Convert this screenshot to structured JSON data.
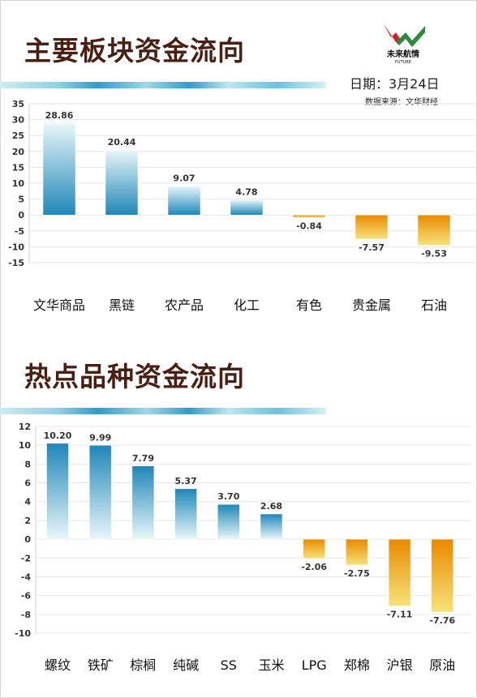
{
  "header": {
    "title": "主要板块资金流向",
    "date_label": "日期：3月24日",
    "source_label": "数据来源：文华财经",
    "logo_text": "未来航情",
    "logo_subtext": "FUTURE"
  },
  "section2": {
    "title": "热点品种资金流向"
  },
  "colors": {
    "positive_top": "#e8f7fa",
    "positive_bottom": "#1f86b8",
    "negative_top": "#e88a00",
    "negative_bottom": "#f7e27a",
    "title": "#4a1f12"
  },
  "chart_data": [
    {
      "type": "bar",
      "title": "主要板块资金流向",
      "categories": [
        "文华商品",
        "黑链",
        "农产品",
        "化工",
        "有色",
        "贵金属",
        "石油"
      ],
      "values": [
        28.86,
        20.44,
        9.07,
        4.78,
        -0.84,
        -7.57,
        -9.53
      ],
      "value_labels": [
        "28.86",
        "20.44",
        "9.07",
        "4.78",
        "-0.84",
        "-7.57",
        "-9.53"
      ],
      "ylim": [
        -15,
        35
      ],
      "yticks": [
        35,
        30,
        25,
        20,
        15,
        10,
        5,
        0,
        -5,
        -10,
        -15
      ],
      "grid": true
    },
    {
      "type": "bar",
      "title": "热点品种资金流向",
      "categories": [
        "螺纹",
        "铁矿",
        "棕榈",
        "纯碱",
        "SS",
        "玉米",
        "LPG",
        "郑棉",
        "沪银",
        "原油"
      ],
      "values": [
        10.2,
        9.99,
        7.79,
        5.37,
        3.7,
        2.68,
        -2.06,
        -2.75,
        -7.11,
        -7.76
      ],
      "value_labels": [
        "10.20",
        "9.99",
        "7.79",
        "5.37",
        "3.70",
        "2.68",
        "-2.06",
        "-2.75",
        "-7.11",
        "-7.76"
      ],
      "ylim": [
        -10,
        12
      ],
      "yticks": [
        12,
        10,
        8,
        6,
        4,
        2,
        0,
        -2,
        -4,
        -6,
        -8,
        -10
      ],
      "grid": true
    }
  ]
}
